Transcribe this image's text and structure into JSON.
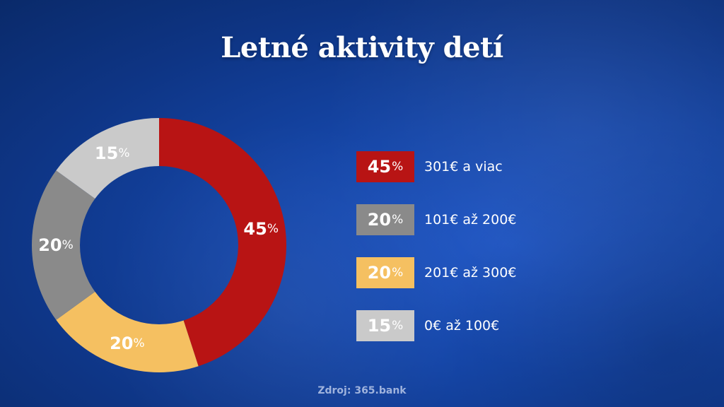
{
  "title": "Letné aktivity detí",
  "source": "Zdroj: 365.bank",
  "chart_data": {
    "type": "pie",
    "title": "Letné aktivity detí",
    "slices": [
      {
        "label": "301€ a viac",
        "value": 45,
        "display": "45",
        "color": "#b81414"
      },
      {
        "label": "201€ až 300€",
        "value": 20,
        "display": "20",
        "color": "#f5c061"
      },
      {
        "label": "101€ až 200€",
        "value": 20,
        "display": "20",
        "color": "#8a8a8a"
      },
      {
        "label": "0€ až 100€",
        "value": 15,
        "display": "15",
        "color": "#cacaca"
      }
    ],
    "legend": [
      {
        "display": "45",
        "label": "301€ a viac",
        "color": "#b81414"
      },
      {
        "display": "20",
        "label": "101€ až 200€",
        "color": "#8a8a8a"
      },
      {
        "display": "20",
        "label": "201€ až 300€",
        "color": "#f5c061"
      },
      {
        "display": "15",
        "label": "0€ až 100€",
        "color": "#cacaca"
      }
    ],
    "unit": "%",
    "legend_position": "right"
  }
}
